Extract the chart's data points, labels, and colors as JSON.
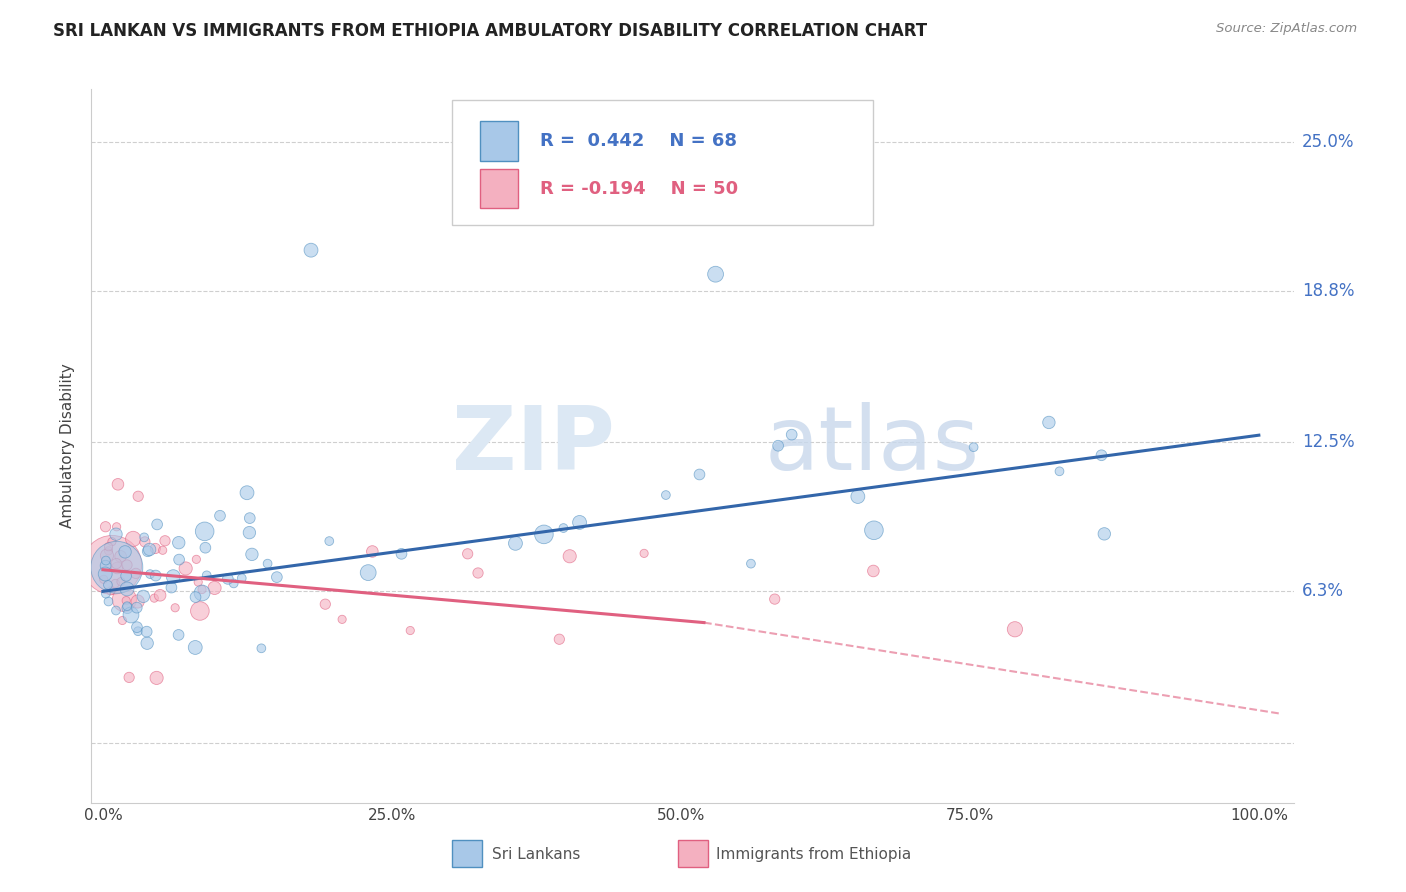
{
  "title": "SRI LANKAN VS IMMIGRANTS FROM ETHIOPIA AMBULATORY DISABILITY CORRELATION CHART",
  "source": "Source: ZipAtlas.com",
  "ylabel": "Ambulatory Disability",
  "sri_lanka_color": "#a8c8e8",
  "ethiopia_color": "#f4b0c0",
  "sri_lanka_edge_color": "#5090c0",
  "ethiopia_edge_color": "#e06080",
  "sri_lanka_line_color": "#3366aa",
  "ethiopia_line_color": "#e06080",
  "sri_lanka_R": 0.442,
  "sri_lanka_N": 68,
  "ethiopia_R": -0.194,
  "ethiopia_N": 50,
  "legend_label_1": "Sri Lankans",
  "legend_label_2": "Immigrants from Ethiopia",
  "ytick_vals": [
    0.0,
    0.063,
    0.125,
    0.188,
    0.25
  ],
  "ytick_labels": [
    "",
    "6.3%",
    "12.5%",
    "18.8%",
    "25.0%"
  ],
  "right_label_color": "#4472c4",
  "watermark_zip_color": "#dce8f4",
  "watermark_atlas_color": "#c8d8ec"
}
